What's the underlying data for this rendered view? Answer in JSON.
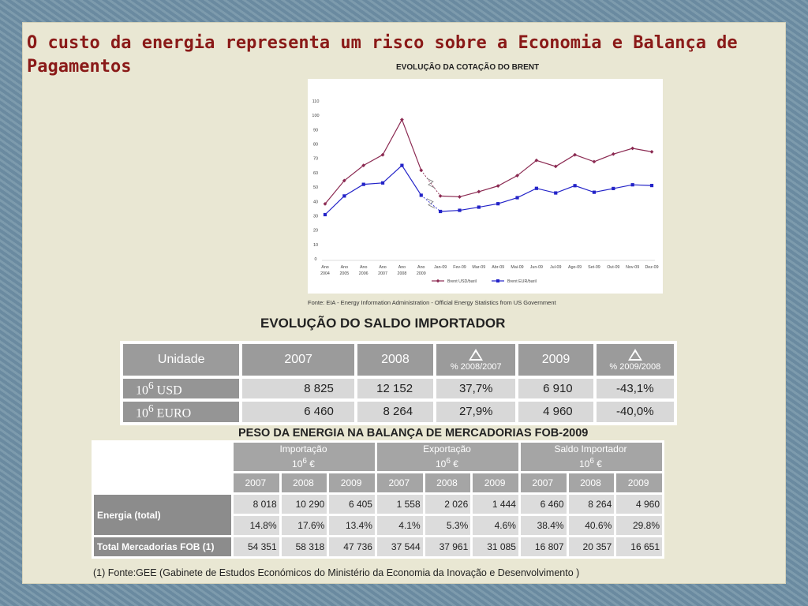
{
  "slide": {
    "title": "O custo da energia representa um risco sobre a Economia e Balança de Pagamentos"
  },
  "colors": {
    "brent_usd": "#8b2a52",
    "brent_eur": "#2323c8"
  },
  "chart_data": {
    "type": "line",
    "title": "EVOLUÇÃO DA COTAÇÃO DO BRENT",
    "source": "Fonte: EIA - Energy Information Administration - Official Energy Statistics from US Government",
    "categories": [
      [
        "Ano",
        "2004"
      ],
      [
        "Ano",
        "2005"
      ],
      [
        "Ano",
        "2006"
      ],
      [
        "Ano",
        "2007"
      ],
      [
        "Ano",
        "2008"
      ],
      [
        "Ano",
        "2009"
      ],
      [
        "Jan-09"
      ],
      [
        "Fev-09"
      ],
      [
        "Mar-09"
      ],
      [
        "Abr-09"
      ],
      [
        "Mai-09"
      ],
      [
        "Jun-09"
      ],
      [
        "Jul-09"
      ],
      [
        "Ago-09"
      ],
      [
        "Set-09"
      ],
      [
        "Out-09"
      ],
      [
        "Nov-09"
      ],
      [
        "Dez-09"
      ]
    ],
    "yticks": [
      0,
      10,
      20,
      30,
      40,
      50,
      60,
      70,
      80,
      90,
      100,
      110
    ],
    "ylim": [
      0,
      110
    ],
    "grid": false,
    "legend_position": "bottom",
    "series": [
      {
        "name": "Brent USD/baril",
        "values": [
          38.3,
          54.5,
          65.1,
          72.5,
          97.0,
          61.7,
          43.8,
          43.2,
          46.8,
          50.8,
          58.0,
          68.6,
          64.4,
          72.5,
          67.7,
          73.0,
          77.0,
          74.6
        ]
      },
      {
        "name": "Brent EUR/baril",
        "values": [
          30.8,
          43.8,
          51.9,
          52.9,
          65.1,
          44.3,
          33.0,
          33.8,
          36.0,
          38.4,
          42.6,
          49.1,
          45.9,
          51.0,
          46.4,
          49.0,
          51.6,
          51.1
        ]
      }
    ]
  },
  "saldo": {
    "title": "EVOLUÇÃO DO SALDO IMPORTADOR",
    "headers": {
      "unidade": "Unidade",
      "y2007": "2007",
      "y2008": "2008",
      "d1": "% 2008/2007",
      "y2009": "2009",
      "d2": "% 2009/2008"
    },
    "rows": [
      {
        "label_base": "10",
        "label_exp": "6",
        "label_unit": " USD",
        "v2007": "8 825",
        "v2008": "12 152",
        "d1": "37,7%",
        "v2009": "6 910",
        "d2": "-43,1%"
      },
      {
        "label_base": "10",
        "label_exp": "6",
        "label_unit": " EURO",
        "v2007": "6 460",
        "v2008": "8 264",
        "d1": "27,9%",
        "v2009": "4 960",
        "d2": "-40,0%"
      }
    ]
  },
  "peso": {
    "title": "PESO DA ENERGIA NA BALANÇA DE MERCADORIAS FOB-2009",
    "groups": [
      {
        "name": "Importação",
        "unit_base": "10",
        "unit_exp": "6",
        "unit_sym": " €"
      },
      {
        "name": "Exportação",
        "unit_base": "10",
        "unit_exp": "6",
        "unit_sym": " €"
      },
      {
        "name": "Saldo Importador",
        "unit_base": "10",
        "unit_exp": "6",
        "unit_sym": " €"
      }
    ],
    "years": [
      "2007",
      "2008",
      "2009",
      "2007",
      "2008",
      "2009",
      "2007",
      "2008",
      "2009"
    ],
    "energia_label": "Energia (total)",
    "energia_values": [
      "8 018",
      "10 290",
      "6 405",
      "1 558",
      "2 026",
      "1 444",
      "6 460",
      "8 264",
      "4 960"
    ],
    "energia_pct": [
      "14.8%",
      "17.6%",
      "13.4%",
      "4.1%",
      "5.3%",
      "4.6%",
      "38.4%",
      "40.6%",
      "29.8%"
    ],
    "total_label": "Total Mercadorias FOB (1)",
    "total_values": [
      "54 351",
      "58 318",
      "47 736",
      "37 544",
      "37 961",
      "31 085",
      "16 807",
      "20 357",
      "16 651"
    ],
    "footnote": "(1) Fonte:GEE (Gabinete de Estudos Económicos do Ministério da Economia da Inovação e Desenvolvimento )"
  }
}
